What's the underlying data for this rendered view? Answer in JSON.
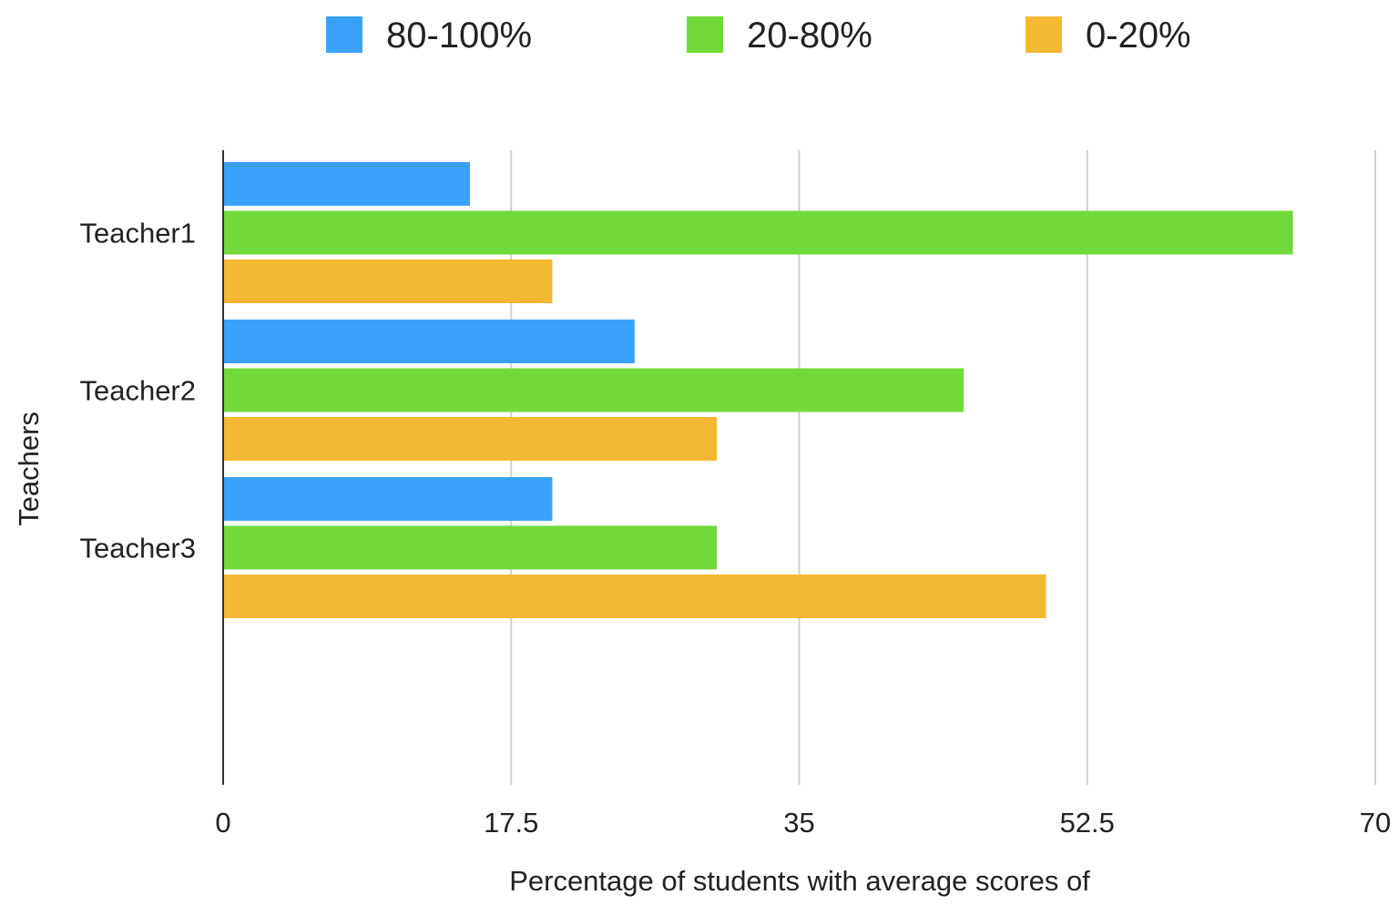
{
  "chart_data": {
    "type": "bar",
    "orientation": "horizontal",
    "categories": [
      "Teacher1",
      "Teacher2",
      "Teacher3"
    ],
    "series": [
      {
        "name": "80-100%",
        "color": "#3aa1f9",
        "values": [
          15,
          25,
          20
        ]
      },
      {
        "name": "20-80%",
        "color": "#72d93a",
        "values": [
          65,
          45,
          30
        ]
      },
      {
        "name": "0-20%",
        "color": "#f5b833",
        "values": [
          20,
          30,
          50
        ]
      }
    ],
    "xlabel": "Percentage of students with average scores of",
    "ylabel": "Teachers",
    "xlim": [
      0,
      70
    ],
    "xticks": [
      0,
      17.5,
      35,
      52.5,
      70
    ],
    "xtick_labels": [
      "0",
      "17.5",
      "35",
      "52.5",
      "70"
    ],
    "grid": "vertical",
    "legend_position": "top"
  }
}
